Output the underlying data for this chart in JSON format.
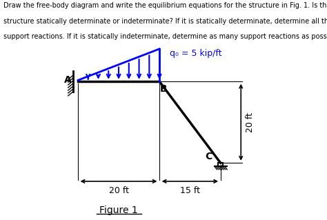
{
  "text_top": "Draw the free-body diagram and write the equilibrium equations for the structure in Fig. 1. Is the\nstructure statically determinate or indeterminate? If it is statically determinate, determine all the\nsupport reactions. If it is statically indeterminate, determine as many support reactions as possible.",
  "figure_label": "Figure 1",
  "load_label": "q₀ = 5 kip/ft",
  "label_A": "A",
  "label_B": "B",
  "label_C": "C",
  "dim_left": "20 ft",
  "dim_right": "15 ft",
  "dim_vert": "20 ft",
  "structure_color": "#000000",
  "load_color": "#0000FF",
  "bg_color": "#FFFFFF",
  "text_color": "#000000"
}
